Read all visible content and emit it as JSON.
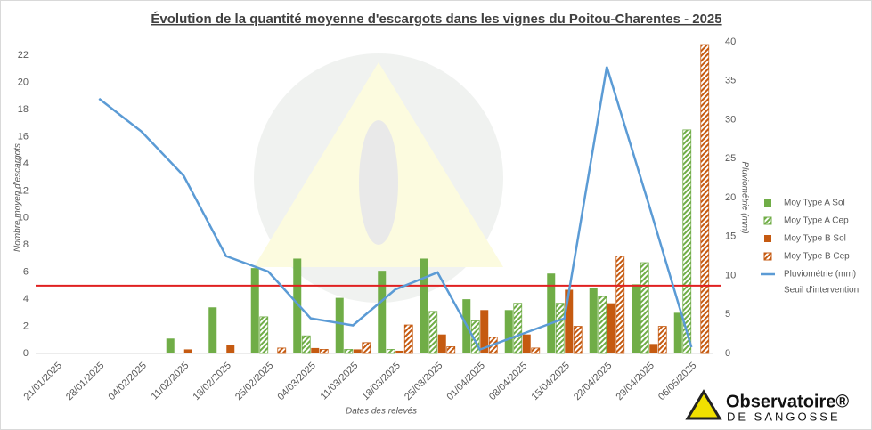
{
  "chart_data": {
    "type": "bar",
    "title": "Évolution de la quantité moyenne d'escargots dans les vignes du Poitou-Charentes  - 2025",
    "x_label": "Dates des relevés",
    "y_label": "Nombre moyen d'escargots",
    "y2_label": "Pluviométrie (mm)",
    "categories": [
      "21/01/2025",
      "28/01/2025",
      "04/02/2025",
      "11/02/2025",
      "18/02/2025",
      "25/02/2025",
      "04/03/2025",
      "11/03/2025",
      "18/03/2025",
      "25/03/2025",
      "01/04/2025",
      "08/04/2025",
      "15/04/2025",
      "22/04/2025",
      "29/04/2025",
      "06/05/2025"
    ],
    "series": [
      {
        "name": "Moy Type A Sol",
        "color": "#70ad47",
        "style": "solid",
        "values": [
          null,
          null,
          null,
          1.1,
          3.4,
          6.3,
          7.0,
          4.1,
          6.1,
          7.0,
          4.0,
          3.2,
          5.9,
          4.8,
          5.1,
          3.0
        ]
      },
      {
        "name": "Moy Type A Cep",
        "color": "#70ad47",
        "style": "hatch",
        "values": [
          null,
          null,
          null,
          null,
          null,
          2.7,
          1.3,
          0.3,
          0.3,
          3.1,
          2.4,
          3.7,
          3.7,
          4.2,
          6.7,
          16.5
        ]
      },
      {
        "name": "Moy Type B Sol",
        "color": "#c55a11",
        "style": "solid",
        "values": [
          null,
          null,
          null,
          0.3,
          0.6,
          null,
          0.4,
          0.3,
          0.2,
          1.4,
          3.2,
          1.4,
          4.7,
          3.7,
          0.7,
          null
        ]
      },
      {
        "name": "Moy Type B Cep",
        "color": "#c55a11",
        "style": "hatch",
        "values": [
          null,
          null,
          null,
          null,
          null,
          0.4,
          0.3,
          0.8,
          2.1,
          0.5,
          1.2,
          0.4,
          2.0,
          7.2,
          2.0,
          22.8
        ]
      },
      {
        "name": "Pluviométrie (mm)",
        "color": "#5b9bd5",
        "type": "line",
        "axis": "y2",
        "values": [
          null,
          32.7,
          28.5,
          22.8,
          12.5,
          10.5,
          4.5,
          3.6,
          8.2,
          10.4,
          0.5,
          2.5,
          4.5,
          36.8,
          19.0,
          0.8
        ]
      }
    ],
    "threshold": {
      "name": "Seuil d'intervention",
      "value": 5,
      "color": "#e02020"
    },
    "ylim": [
      0,
      23
    ],
    "yticks": [
      0,
      2,
      4,
      6,
      8,
      10,
      12,
      14,
      16,
      18,
      20,
      22
    ],
    "y2lim": [
      0,
      40
    ],
    "y2ticks": [
      0,
      5,
      10,
      15,
      20,
      25,
      30,
      35,
      40
    ],
    "legend": "right",
    "logo": {
      "name": "Observatoire®",
      "subtitle": "DE SANGOSSE"
    }
  }
}
